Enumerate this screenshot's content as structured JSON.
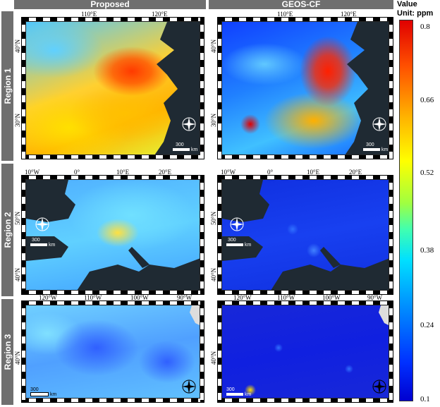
{
  "columns": [
    "Proposed",
    "GEOS-CF"
  ],
  "rows": [
    "Region 1",
    "Region 2",
    "Region 3"
  ],
  "colorbar": {
    "title_line1": "Value",
    "title_line2": "Unit: ppm",
    "ticks": [
      "0.8",
      "0.66",
      "0.52",
      "0.38",
      "0.24",
      "0.1"
    ]
  },
  "region1": {
    "lon_labels": [
      "110°E",
      "120°E"
    ],
    "lat_labels": [
      "40°N",
      "30°N"
    ],
    "scale": "300",
    "scale_unit": "km"
  },
  "region2": {
    "lon_labels": [
      "10°W",
      "0°",
      "10°E",
      "20°E"
    ],
    "lat_labels": [
      "50°N",
      "40°N"
    ],
    "scale": "300",
    "scale_unit": "km"
  },
  "region3": {
    "lon_labels": [
      "120°W",
      "110°W",
      "100°W",
      "90°W"
    ],
    "lat_labels": [
      "40°N"
    ],
    "scale": "300",
    "scale_unit": "km"
  },
  "compass_letters": {
    "n": "N",
    "s": "S",
    "e": "E",
    "w": "W"
  },
  "colors": {
    "header_bg": "#6f6f6f",
    "ocean": "#1f2a33",
    "low": "#0000d0",
    "high": "#e00000"
  }
}
